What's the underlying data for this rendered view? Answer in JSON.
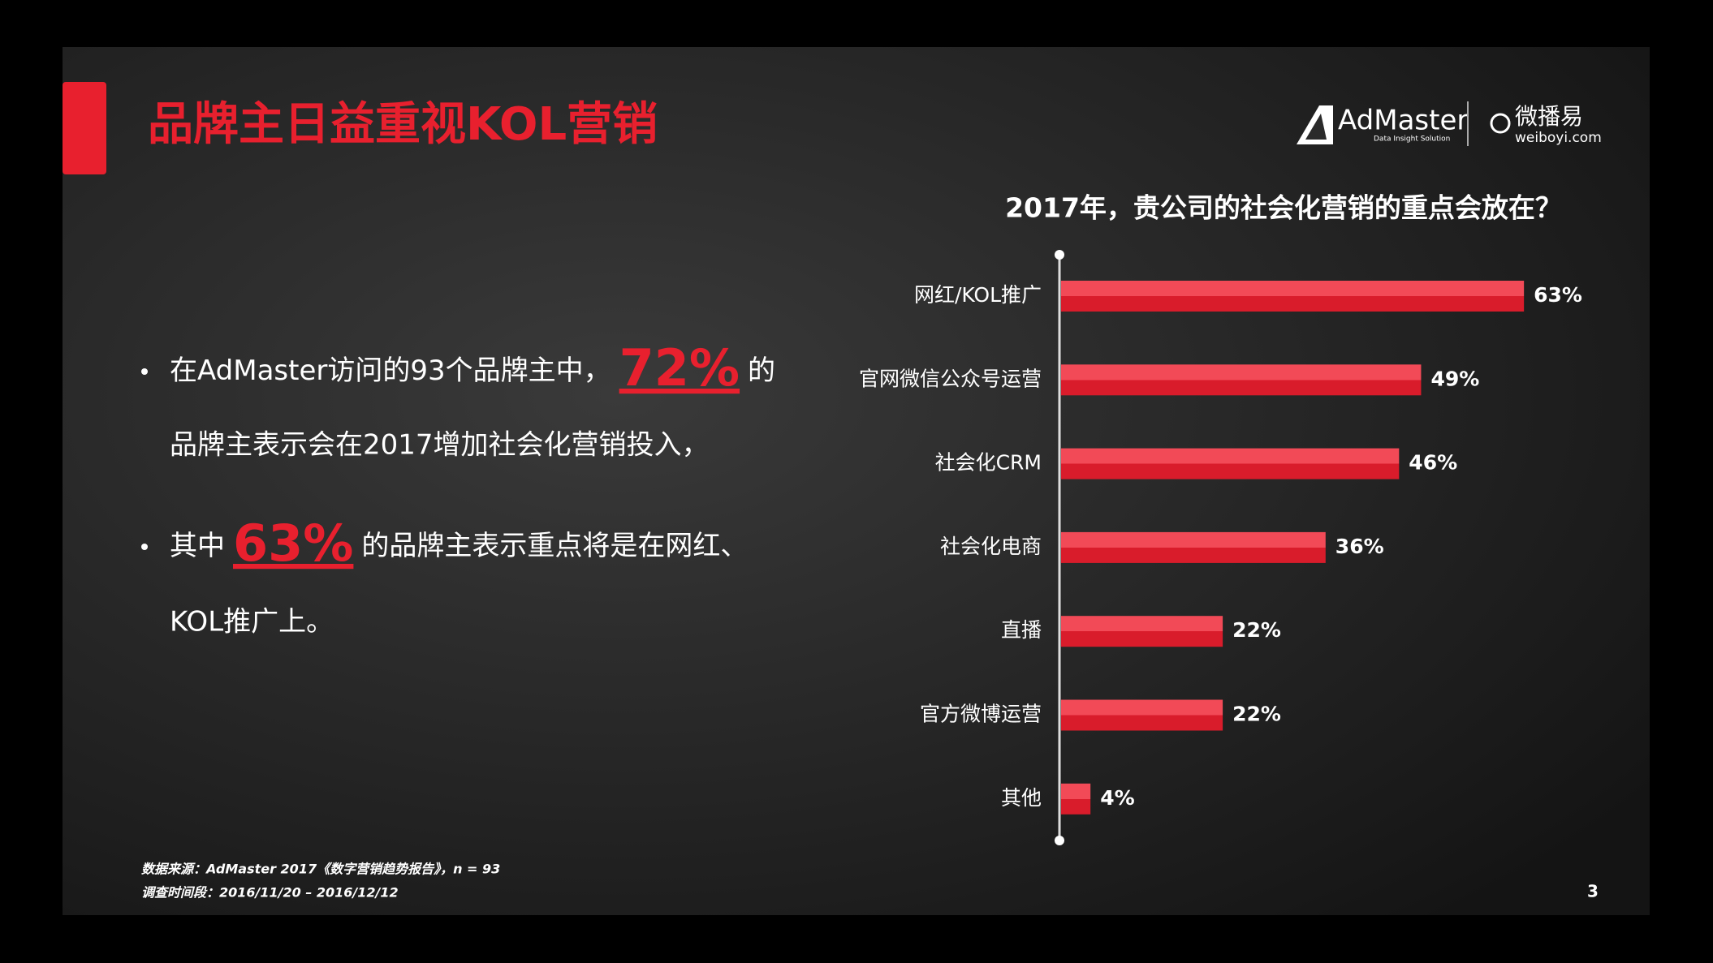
{
  "header": {
    "title": "品牌主日益重视KOL营销"
  },
  "logos": {
    "admaster": "AdMaster",
    "admaster_tagline": "Data Insight Solution",
    "weiboyi": "微播易",
    "weiboyi_url": "weiboyi.com"
  },
  "bullets": [
    {
      "before": "在AdMaster访问的93个品牌主中，",
      "highlight": "72%",
      "after": "的",
      "continuation": "品牌主表示会在2017增加社会化营销投入，"
    },
    {
      "before": "其中",
      "highlight": "63%",
      "after": "的品牌主表示重点将是在网红、",
      "continuation": "KOL推广上。"
    }
  ],
  "chart_data": {
    "type": "bar",
    "orientation": "horizontal",
    "title": "2017年，贵公司的社会化营销的重点会放在？",
    "categories": [
      "网红/KOL推广",
      "官网微信公众号运营",
      "社会化CRM",
      "社会化电商",
      "直播",
      "官方微博运营",
      "其他"
    ],
    "values": [
      63,
      49,
      46,
      36,
      22,
      22,
      4
    ],
    "value_labels": [
      "63%",
      "49%",
      "46%",
      "36%",
      "22%",
      "22%",
      "4%"
    ],
    "color": "#e62434"
  },
  "footnotes": [
    "数据来源：AdMaster 2017《数字营销趋势报告》，n = 93",
    "调查时间段：2016/11/20 – 2016/12/12"
  ],
  "page_number": "3"
}
